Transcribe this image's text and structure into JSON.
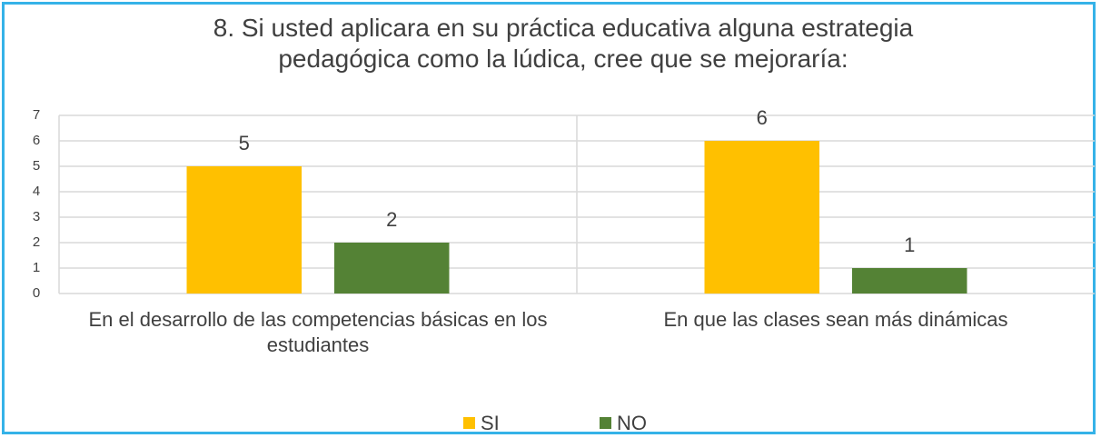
{
  "chart_data": {
    "type": "bar",
    "title": "8. Si usted aplicara en su práctica educativa alguna estrategia pedagógica como la lúdica, cree que se mejoraría:",
    "categories": [
      "En el desarrollo de las competencias básicas en los estudiantes",
      "En que las clases sean más dinámicas"
    ],
    "series": [
      {
        "name": "SI",
        "color": "#ffc000",
        "values": [
          5,
          6
        ]
      },
      {
        "name": "NO",
        "color": "#548235",
        "values": [
          2,
          1
        ]
      }
    ],
    "ylim": [
      0,
      7
    ],
    "yticks": [
      0,
      1,
      2,
      3,
      4,
      5,
      6,
      7
    ],
    "grid": true,
    "legend": "bottom"
  }
}
